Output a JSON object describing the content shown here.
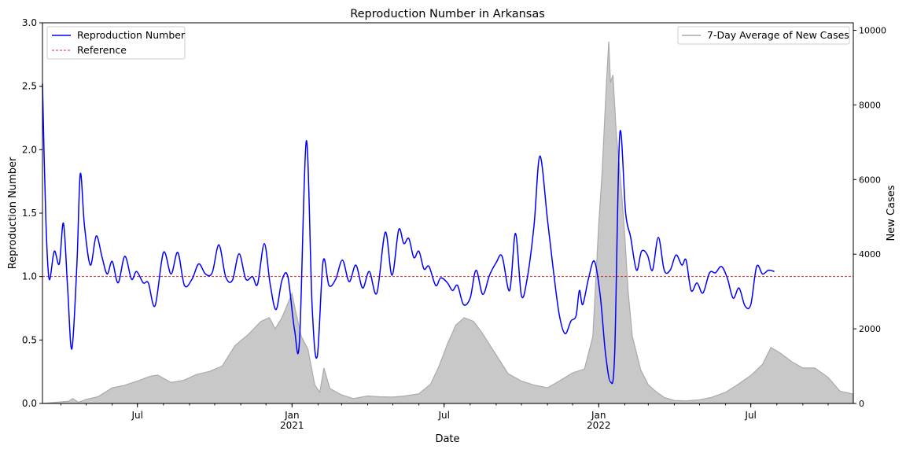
{
  "chart_data": {
    "type": "line",
    "title": "Reproduction Number in Arkansas",
    "xlabel": "Date",
    "ylabel": "Reproduction Number",
    "ylabel_right": "New Cases",
    "xlim": [
      "2020-03-10",
      "2022-10-31"
    ],
    "ylim": [
      0,
      3.0
    ],
    "ylim_right": [
      0,
      10200
    ],
    "yticks": [
      0.0,
      0.5,
      1.0,
      1.5,
      2.0,
      2.5,
      3.0
    ],
    "ytick_labels": [
      "0.0",
      "0.5",
      "1.0",
      "1.5",
      "2.0",
      "2.5",
      "3.0"
    ],
    "yticks_right": [
      0,
      2000,
      4000,
      6000,
      8000,
      10000
    ],
    "ytick_labels_right": [
      "0",
      "2000",
      "4000",
      "6000",
      "8000",
      "10000"
    ],
    "xticks_major": [
      {
        "date": "2020-07-01",
        "label": "Jul",
        "sublabel": ""
      },
      {
        "date": "2021-01-01",
        "label": "Jan",
        "sublabel": "2021"
      },
      {
        "date": "2021-07-01",
        "label": "Jul",
        "sublabel": ""
      },
      {
        "date": "2022-01-01",
        "label": "Jan",
        "sublabel": "2022"
      },
      {
        "date": "2022-07-01",
        "label": "Jul",
        "sublabel": ""
      }
    ],
    "legend_left": [
      {
        "label": "Reproduction Number",
        "color": "#0000ff",
        "style": "solid"
      },
      {
        "label": "Reference",
        "color": "#d62728",
        "style": "dashed"
      }
    ],
    "legend_right": [
      {
        "label": "7-Day Average of New Cases",
        "color": "#aaaaaa",
        "style": "solid"
      }
    ],
    "reference_value": 1.0,
    "series": [
      {
        "name": "Reproduction Number",
        "axis": "left",
        "color": "#0000ff",
        "points": [
          [
            "2020-03-10",
            2.52
          ],
          [
            "2020-03-14",
            1.45
          ],
          [
            "2020-03-18",
            0.98
          ],
          [
            "2020-03-24",
            1.2
          ],
          [
            "2020-03-30",
            1.1
          ],
          [
            "2020-04-04",
            1.42
          ],
          [
            "2020-04-09",
            0.9
          ],
          [
            "2020-04-14",
            0.43
          ],
          [
            "2020-04-20",
            1.1
          ],
          [
            "2020-04-24",
            1.81
          ],
          [
            "2020-04-29",
            1.4
          ],
          [
            "2020-05-06",
            1.09
          ],
          [
            "2020-05-13",
            1.32
          ],
          [
            "2020-05-20",
            1.15
          ],
          [
            "2020-05-26",
            1.02
          ],
          [
            "2020-06-01",
            1.12
          ],
          [
            "2020-06-08",
            0.95
          ],
          [
            "2020-06-16",
            1.16
          ],
          [
            "2020-06-24",
            0.98
          ],
          [
            "2020-06-30",
            1.04
          ],
          [
            "2020-07-08",
            0.95
          ],
          [
            "2020-07-14",
            0.95
          ],
          [
            "2020-07-22",
            0.77
          ],
          [
            "2020-08-01",
            1.19
          ],
          [
            "2020-08-10",
            1.02
          ],
          [
            "2020-08-18",
            1.19
          ],
          [
            "2020-08-26",
            0.93
          ],
          [
            "2020-09-04",
            0.98
          ],
          [
            "2020-09-12",
            1.1
          ],
          [
            "2020-09-20",
            1.02
          ],
          [
            "2020-09-28",
            1.03
          ],
          [
            "2020-10-06",
            1.25
          ],
          [
            "2020-10-14",
            1.0
          ],
          [
            "2020-10-22",
            0.97
          ],
          [
            "2020-10-30",
            1.18
          ],
          [
            "2020-11-07",
            0.98
          ],
          [
            "2020-11-15",
            1.0
          ],
          [
            "2020-11-21",
            0.94
          ],
          [
            "2020-11-29",
            1.26
          ],
          [
            "2020-12-06",
            0.94
          ],
          [
            "2020-12-13",
            0.74
          ],
          [
            "2020-12-20",
            0.97
          ],
          [
            "2020-12-27",
            1.0
          ],
          [
            "2021-01-04",
            0.58
          ],
          [
            "2021-01-10",
            0.5
          ],
          [
            "2021-01-18",
            2.07
          ],
          [
            "2021-01-25",
            0.75
          ],
          [
            "2021-01-31",
            0.37
          ],
          [
            "2021-02-07",
            1.12
          ],
          [
            "2021-02-14",
            0.93
          ],
          [
            "2021-02-22",
            0.98
          ],
          [
            "2021-03-02",
            1.13
          ],
          [
            "2021-03-10",
            0.96
          ],
          [
            "2021-03-18",
            1.09
          ],
          [
            "2021-03-26",
            0.91
          ],
          [
            "2021-04-03",
            1.04
          ],
          [
            "2021-04-12",
            0.87
          ],
          [
            "2021-04-22",
            1.35
          ],
          [
            "2021-04-30",
            1.01
          ],
          [
            "2021-05-08",
            1.37
          ],
          [
            "2021-05-14",
            1.26
          ],
          [
            "2021-05-20",
            1.3
          ],
          [
            "2021-05-26",
            1.15
          ],
          [
            "2021-06-01",
            1.2
          ],
          [
            "2021-06-07",
            1.06
          ],
          [
            "2021-06-13",
            1.08
          ],
          [
            "2021-06-21",
            0.93
          ],
          [
            "2021-06-27",
            0.99
          ],
          [
            "2021-07-05",
            0.95
          ],
          [
            "2021-07-11",
            0.89
          ],
          [
            "2021-07-17",
            0.93
          ],
          [
            "2021-07-24",
            0.78
          ],
          [
            "2021-08-01",
            0.83
          ],
          [
            "2021-08-08",
            1.05
          ],
          [
            "2021-08-16",
            0.86
          ],
          [
            "2021-08-24",
            1.01
          ],
          [
            "2021-09-01",
            1.11
          ],
          [
            "2021-09-08",
            1.16
          ],
          [
            "2021-09-17",
            0.89
          ],
          [
            "2021-09-24",
            1.34
          ],
          [
            "2021-10-01",
            0.85
          ],
          [
            "2021-10-08",
            0.99
          ],
          [
            "2021-10-16",
            1.4
          ],
          [
            "2021-10-23",
            1.95
          ],
          [
            "2021-11-01",
            1.45
          ],
          [
            "2021-11-08",
            1.05
          ],
          [
            "2021-11-15",
            0.7
          ],
          [
            "2021-11-22",
            0.55
          ],
          [
            "2021-11-29",
            0.65
          ],
          [
            "2021-12-05",
            0.69
          ],
          [
            "2021-12-09",
            0.89
          ],
          [
            "2021-12-13",
            0.78
          ],
          [
            "2021-12-20",
            0.99
          ],
          [
            "2021-12-27",
            1.12
          ],
          [
            "2022-01-03",
            0.84
          ],
          [
            "2022-01-09",
            0.4
          ],
          [
            "2022-01-15",
            0.17
          ],
          [
            "2022-01-20",
            0.4
          ],
          [
            "2022-01-26",
            2.12
          ],
          [
            "2022-02-02",
            1.5
          ],
          [
            "2022-02-08",
            1.31
          ],
          [
            "2022-02-15",
            1.05
          ],
          [
            "2022-02-21",
            1.2
          ],
          [
            "2022-02-28",
            1.17
          ],
          [
            "2022-03-06",
            1.05
          ],
          [
            "2022-03-13",
            1.31
          ],
          [
            "2022-03-20",
            1.05
          ],
          [
            "2022-03-27",
            1.05
          ],
          [
            "2022-04-03",
            1.17
          ],
          [
            "2022-04-10",
            1.09
          ],
          [
            "2022-04-15",
            1.13
          ],
          [
            "2022-04-21",
            0.89
          ],
          [
            "2022-04-28",
            0.95
          ],
          [
            "2022-05-05",
            0.87
          ],
          [
            "2022-05-13",
            1.03
          ],
          [
            "2022-05-20",
            1.03
          ],
          [
            "2022-05-27",
            1.08
          ],
          [
            "2022-06-03",
            0.99
          ],
          [
            "2022-06-10",
            0.83
          ],
          [
            "2022-06-17",
            0.91
          ],
          [
            "2022-06-24",
            0.77
          ],
          [
            "2022-07-01",
            0.78
          ],
          [
            "2022-07-08",
            1.08
          ],
          [
            "2022-07-15",
            1.02
          ],
          [
            "2022-07-22",
            1.05
          ],
          [
            "2022-07-29",
            1.04
          ]
        ]
      },
      {
        "name": "7-Day Average of New Cases",
        "axis": "right",
        "color": "#aaaaaa",
        "fill": "#c8c8c8",
        "points": [
          [
            "2020-03-10",
            0
          ],
          [
            "2020-03-25",
            30
          ],
          [
            "2020-04-10",
            60
          ],
          [
            "2020-04-15",
            130
          ],
          [
            "2020-04-22",
            30
          ],
          [
            "2020-05-01",
            110
          ],
          [
            "2020-05-15",
            180
          ],
          [
            "2020-06-01",
            420
          ],
          [
            "2020-06-15",
            480
          ],
          [
            "2020-07-01",
            600
          ],
          [
            "2020-07-15",
            720
          ],
          [
            "2020-07-25",
            760
          ],
          [
            "2020-08-10",
            560
          ],
          [
            "2020-08-25",
            620
          ],
          [
            "2020-09-10",
            780
          ],
          [
            "2020-09-25",
            860
          ],
          [
            "2020-10-10",
            1000
          ],
          [
            "2020-10-25",
            1550
          ],
          [
            "2020-11-10",
            1850
          ],
          [
            "2020-11-25",
            2200
          ],
          [
            "2020-12-05",
            2300
          ],
          [
            "2020-12-12",
            2000
          ],
          [
            "2020-12-20",
            2300
          ],
          [
            "2021-01-01",
            2950
          ],
          [
            "2021-01-05",
            2500
          ],
          [
            "2021-01-12",
            1800
          ],
          [
            "2021-01-20",
            1450
          ],
          [
            "2021-01-28",
            500
          ],
          [
            "2021-02-03",
            300
          ],
          [
            "2021-02-08",
            950
          ],
          [
            "2021-02-15",
            400
          ],
          [
            "2021-03-01",
            230
          ],
          [
            "2021-03-15",
            130
          ],
          [
            "2021-04-01",
            200
          ],
          [
            "2021-04-15",
            180
          ],
          [
            "2021-05-01",
            170
          ],
          [
            "2021-05-15",
            200
          ],
          [
            "2021-06-01",
            260
          ],
          [
            "2021-06-15",
            520
          ],
          [
            "2021-06-25",
            1000
          ],
          [
            "2021-07-05",
            1600
          ],
          [
            "2021-07-15",
            2100
          ],
          [
            "2021-07-25",
            2300
          ],
          [
            "2021-08-05",
            2200
          ],
          [
            "2021-08-15",
            1900
          ],
          [
            "2021-09-01",
            1300
          ],
          [
            "2021-09-15",
            800
          ],
          [
            "2021-10-01",
            600
          ],
          [
            "2021-10-15",
            500
          ],
          [
            "2021-11-01",
            420
          ],
          [
            "2021-11-15",
            600
          ],
          [
            "2021-12-01",
            820
          ],
          [
            "2021-12-15",
            920
          ],
          [
            "2021-12-25",
            1800
          ],
          [
            "2022-01-01",
            4800
          ],
          [
            "2022-01-05",
            6200
          ],
          [
            "2022-01-10",
            8500
          ],
          [
            "2022-01-13",
            9700
          ],
          [
            "2022-01-15",
            8600
          ],
          [
            "2022-01-18",
            8800
          ],
          [
            "2022-01-22",
            7200
          ],
          [
            "2022-01-27",
            6000
          ],
          [
            "2022-02-01",
            4500
          ],
          [
            "2022-02-05",
            3000
          ],
          [
            "2022-02-10",
            1800
          ],
          [
            "2022-02-20",
            900
          ],
          [
            "2022-03-01",
            500
          ],
          [
            "2022-03-10",
            320
          ],
          [
            "2022-03-20",
            160
          ],
          [
            "2022-04-01",
            80
          ],
          [
            "2022-04-15",
            70
          ],
          [
            "2022-05-01",
            100
          ],
          [
            "2022-05-15",
            160
          ],
          [
            "2022-06-01",
            300
          ],
          [
            "2022-06-15",
            500
          ],
          [
            "2022-07-01",
            750
          ],
          [
            "2022-07-15",
            1050
          ],
          [
            "2022-07-25",
            1500
          ],
          [
            "2022-08-05",
            1350
          ],
          [
            "2022-08-20",
            1100
          ],
          [
            "2022-09-01",
            950
          ],
          [
            "2022-09-15",
            950
          ],
          [
            "2022-10-01",
            700
          ],
          [
            "2022-10-15",
            330
          ],
          [
            "2022-10-31",
            250
          ]
        ]
      }
    ]
  }
}
